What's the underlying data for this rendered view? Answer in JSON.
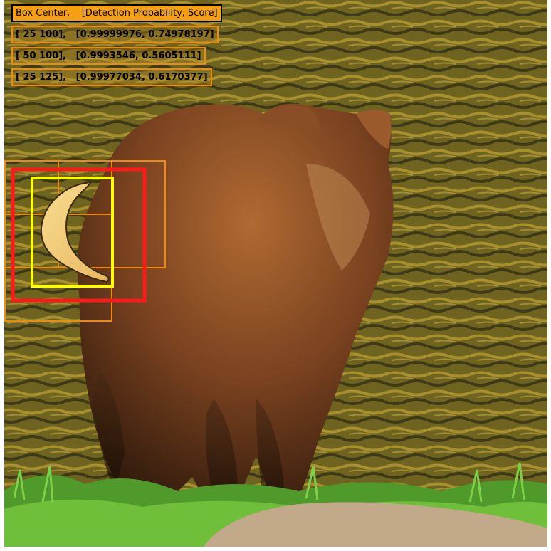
{
  "image": {
    "subject": "bear-standing-at-water-edge",
    "overlay_object": "banana",
    "colors": {
      "selected_box": "#ff1a1a",
      "banana_box": "#ffff00",
      "candidate_boxes": "#f08a0c",
      "legend_header_bg": "#f5a012"
    }
  },
  "legend": {
    "header": "Box Center,    [Detection Probability, Score]",
    "rows": [
      {
        "label": "[ 25 100],   [0.99999976, 0.74978197]"
      },
      {
        "label": "[ 50 100],   [0.9993546, 0.5605111]"
      },
      {
        "label": "[ 25 125],   [0.99977034, 0.6170377]"
      }
    ]
  }
}
